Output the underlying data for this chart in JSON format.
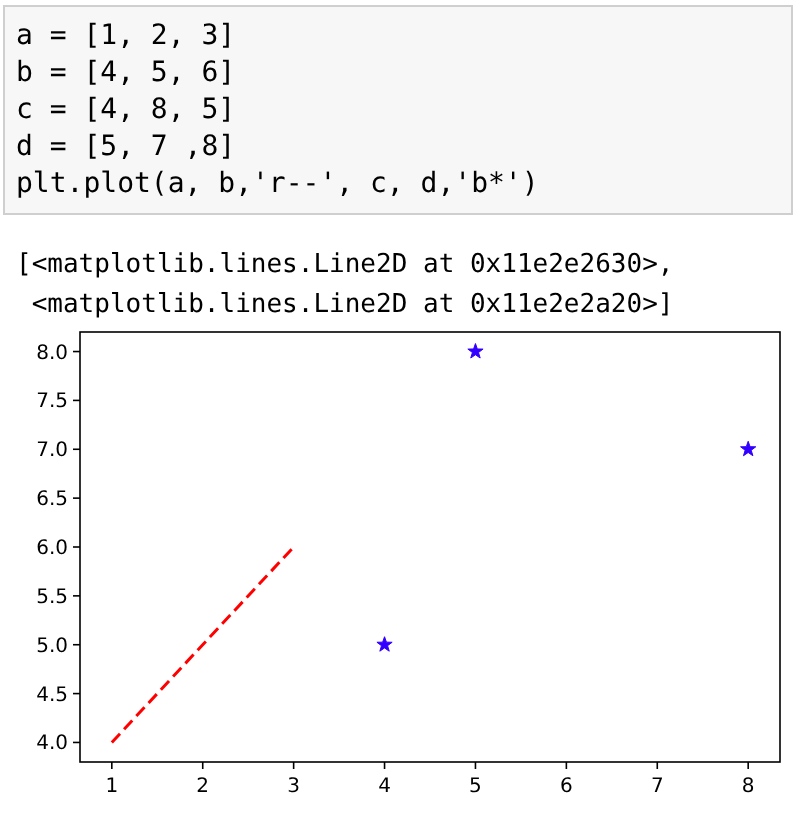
{
  "chart_data": {
    "type": "line",
    "annotations": [
      "a = [1, 2, 3]",
      "b = [4, 5, 6]",
      "c = [4, 8, 5]",
      "d = [5, 7 ,8]",
      "plt.plot(a, b,'r--', c, d,'b*')",
      "[<matplotlib.lines.Line2D at 0x11e2e2630>,",
      " <matplotlib.lines.Line2D at 0x11e2e2a20>]"
    ],
    "series": [
      {
        "x": [
          1,
          2,
          3
        ],
        "values": [
          4,
          5,
          6
        ],
        "color": "#ff0000",
        "line_style": "dashed",
        "marker": "none"
      },
      {
        "type": "scatter",
        "x": [
          4,
          5,
          8
        ],
        "values": [
          5,
          8,
          7
        ],
        "color": "#3300ff",
        "marker": "star"
      }
    ],
    "xlim": [
      0.65,
      8.35
    ],
    "xticks": [
      1,
      2,
      3,
      4,
      5,
      6,
      7,
      8
    ],
    "ylim": [
      3.8,
      8.2
    ],
    "yticks": [
      {
        "value": 4,
        "label": "4.0"
      },
      {
        "value": 4.5,
        "label": "4.5"
      },
      {
        "value": 5,
        "label": "5.0"
      },
      {
        "value": 5.5,
        "label": "5.5"
      },
      {
        "value": 6,
        "label": "6.0"
      },
      {
        "value": 6.5,
        "label": "6.5"
      },
      {
        "value": 7,
        "label": "7.0"
      },
      {
        "value": 7.5,
        "label": "7.5"
      },
      {
        "value": 8,
        "label": "8.0"
      }
    ],
    "grid": false
  }
}
